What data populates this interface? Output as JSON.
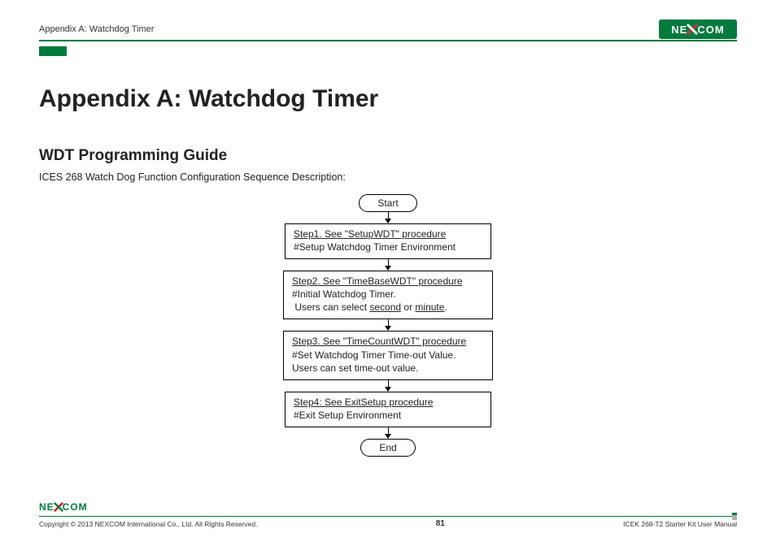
{
  "header": {
    "breadcrumb": "Appendix A: Watchdog Timer",
    "logo_text_left": "NE",
    "logo_text_right": "COM"
  },
  "colors": {
    "brand_green": "#007a3d",
    "text": "#222222",
    "rule": "#007a3d"
  },
  "title": "Appendix A: Watchdog Timer",
  "subtitle": "WDT Programming Guide",
  "description": "ICES 268 Watch Dog Function Configuration Sequence Description:",
  "flow": {
    "start": "Start",
    "end": "End",
    "steps": [
      {
        "title": "Step1. See \"SetupWDT\" procedure",
        "lines": [
          "#Setup Watchdog Timer Environment"
        ]
      },
      {
        "title": "Step2. See \"TimeBaseWDT\" procedure",
        "lines_html": "#Initial Watchdog Timer.<br>&nbsp;Users can select <span class=\"u\">second</span> or <span class=\"u\">minute</span>."
      },
      {
        "title": "Step3. See \"TimeCountWDT\" procedure",
        "lines": [
          "#Set Watchdog Timer Time-out Value.",
          "Users can set time-out value."
        ]
      },
      {
        "title": "Step4: See ExitSetup procedure",
        "lines": [
          "#Exit Setup Environment"
        ]
      }
    ]
  },
  "footer": {
    "logo_text_left": "NE",
    "logo_text_right": "COM",
    "copyright": "Copyright © 2013 NEXCOM International Co., Ltd. All Rights Reserved.",
    "page_number": "81",
    "doc_title": "ICEK 268-T2 Starter Kit User Manual"
  }
}
